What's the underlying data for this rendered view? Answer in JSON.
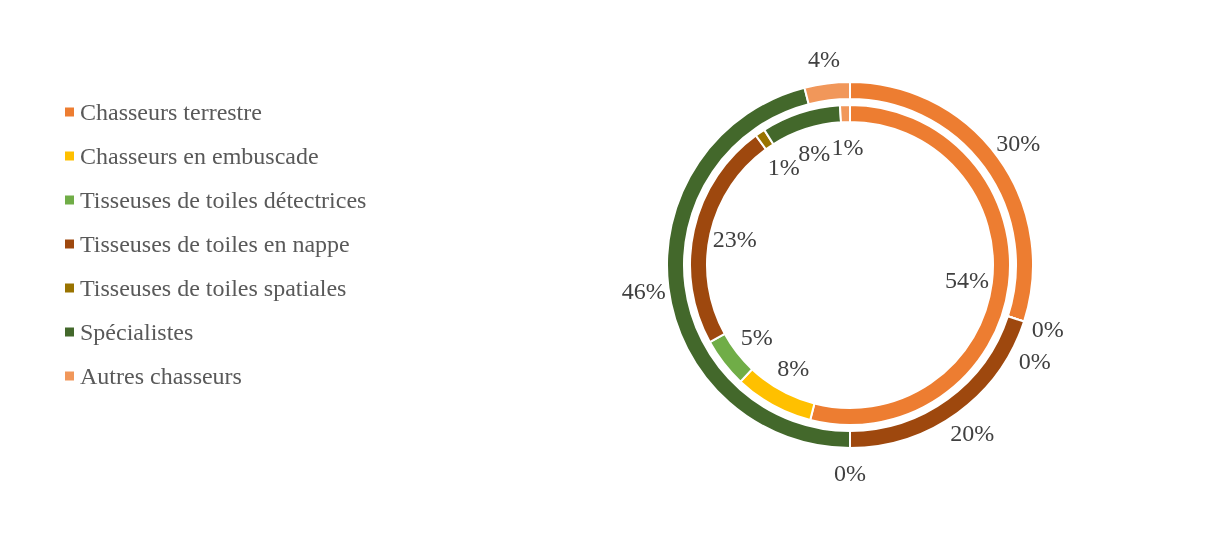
{
  "chart_data": {
    "type": "donut",
    "categories": [
      "Chasseurs terrestre",
      "Chasseurs en embuscade",
      "Tisseuses de toiles détectrices",
      "Tisseuses de toiles en nappe",
      "Tisseuses de toiles spatiales",
      "Spécialistes",
      "Autres chasseurs"
    ],
    "colors": [
      "#ed7d31",
      "#ffc000",
      "#70ad47",
      "#9e480e",
      "#997300",
      "#43682b",
      "#f1975a"
    ],
    "series": [
      {
        "values": [
          54,
          8,
          5,
          23,
          1,
          8,
          1
        ],
        "value_labels": [
          "54%",
          "8%",
          "5%",
          "23%",
          "1%",
          "8%",
          "1%"
        ]
      },
      {
        "values": [
          30,
          0,
          0,
          20,
          0,
          46,
          4
        ],
        "value_labels": [
          "30%",
          "0%",
          "0%",
          "20%",
          "0%",
          "46%",
          "4%"
        ]
      }
    ],
    "legend": "left"
  }
}
